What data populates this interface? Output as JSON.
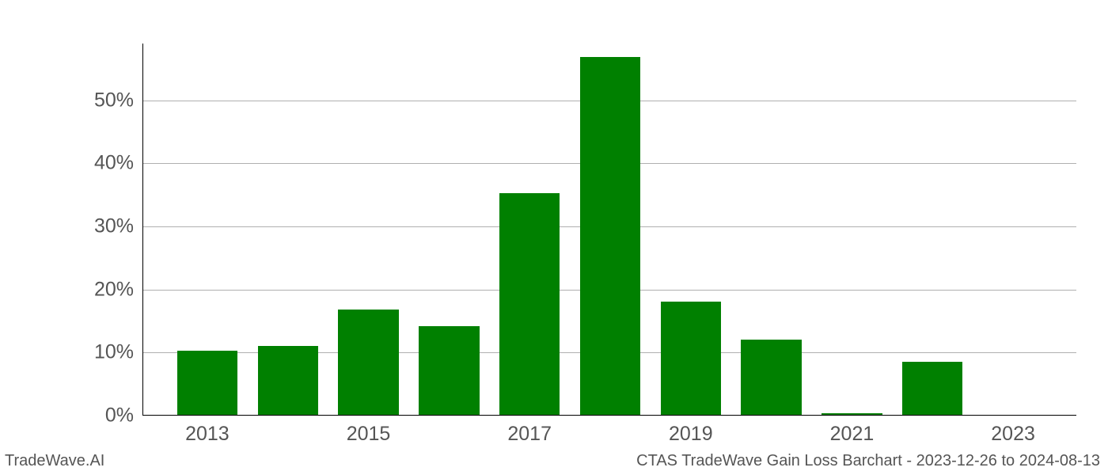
{
  "chart": {
    "type": "bar",
    "years": [
      2013,
      2014,
      2015,
      2016,
      2017,
      2018,
      2019,
      2020,
      2021,
      2022,
      2023
    ],
    "values": [
      10.2,
      10.9,
      16.7,
      14.1,
      35.2,
      56.8,
      18.0,
      11.9,
      0.2,
      8.4,
      0
    ],
    "bar_color": "#008000",
    "background_color": "#ffffff",
    "grid_color": "#b0b0b0",
    "axis_color": "#000000",
    "y_ticks": [
      0,
      10,
      20,
      30,
      40,
      50
    ],
    "y_tick_labels": [
      "0%",
      "10%",
      "20%",
      "30%",
      "40%",
      "50%"
    ],
    "ylim": [
      0,
      59
    ],
    "x_tick_years": [
      2013,
      2015,
      2017,
      2019,
      2021,
      2023
    ],
    "x_tick_labels": [
      "2013",
      "2015",
      "2017",
      "2019",
      "2021",
      "2023"
    ],
    "bar_width_ratio": 0.75,
    "tick_label_fontsize": 25,
    "tick_label_color": "#555555",
    "footer_fontsize": 20,
    "footer_color": "#555555"
  },
  "footer": {
    "left": "TradeWave.AI",
    "right": "CTAS TradeWave Gain Loss Barchart - 2023-12-26 to 2024-08-13"
  }
}
